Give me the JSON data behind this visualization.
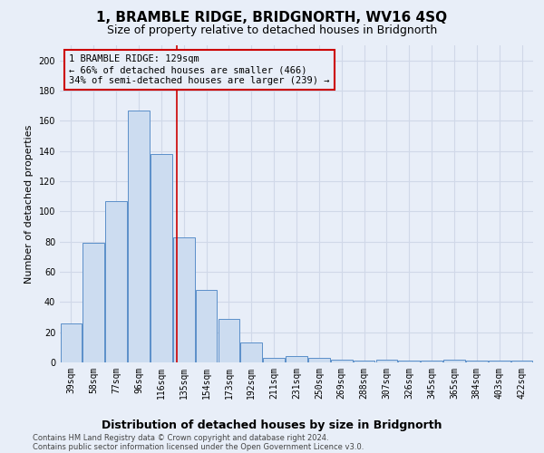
{
  "title": "1, BRAMBLE RIDGE, BRIDGNORTH, WV16 4SQ",
  "subtitle": "Size of property relative to detached houses in Bridgnorth",
  "xlabel": "Distribution of detached houses by size in Bridgnorth",
  "ylabel": "Number of detached properties",
  "categories": [
    "39sqm",
    "58sqm",
    "77sqm",
    "96sqm",
    "116sqm",
    "135sqm",
    "154sqm",
    "173sqm",
    "192sqm",
    "211sqm",
    "231sqm",
    "250sqm",
    "269sqm",
    "288sqm",
    "307sqm",
    "326sqm",
    "345sqm",
    "365sqm",
    "384sqm",
    "403sqm",
    "422sqm"
  ],
  "bar_heights": [
    26,
    79,
    107,
    167,
    138,
    83,
    48,
    29,
    13,
    3,
    4,
    3,
    2,
    1,
    2,
    1,
    1,
    2,
    1,
    1,
    1
  ],
  "bar_color": "#ccdcf0",
  "bar_edge_color": "#5b8fc9",
  "vline_color": "#cc0000",
  "annotation_text": "1 BRAMBLE RIDGE: 129sqm\n← 66% of detached houses are smaller (466)\n34% of semi-detached houses are larger (239) →",
  "annotation_box_color": "#cc0000",
  "ylim": [
    0,
    210
  ],
  "yticks": [
    0,
    20,
    40,
    60,
    80,
    100,
    120,
    140,
    160,
    180,
    200
  ],
  "footer_line1": "Contains HM Land Registry data © Crown copyright and database right 2024.",
  "footer_line2": "Contains public sector information licensed under the Open Government Licence v3.0.",
  "bg_color": "#e8eef8",
  "plot_bg_color": "#e8eef8",
  "grid_color": "#d0d8e8",
  "title_fontsize": 11,
  "subtitle_fontsize": 9,
  "xlabel_fontsize": 9,
  "ylabel_fontsize": 8,
  "tick_fontsize": 7,
  "annotation_fontsize": 7.5
}
